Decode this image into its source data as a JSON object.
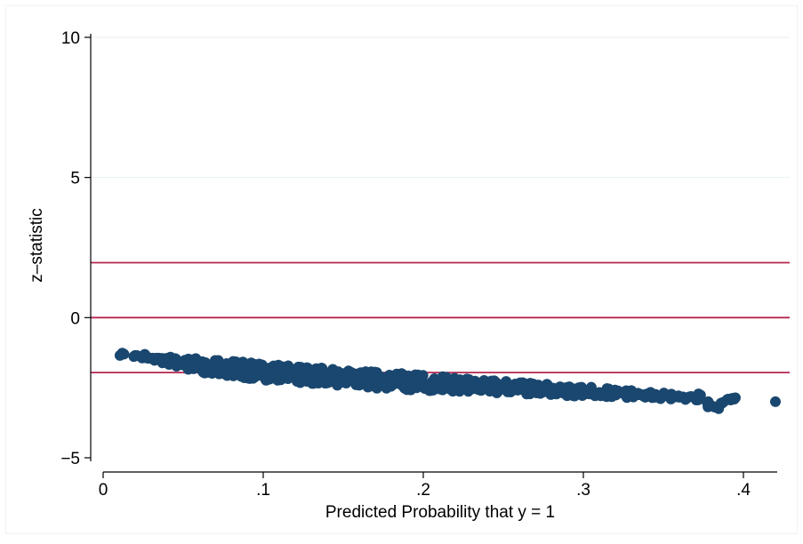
{
  "chart_data": {
    "type": "scatter",
    "title": "",
    "xlabel": "Predicted Probability that y = 1",
    "ylabel": "z–statistic",
    "xlim": [
      0,
      0.42
    ],
    "ylim": [
      -5,
      10
    ],
    "x_ticks": [
      {
        "value": 0,
        "label": "0"
      },
      {
        "value": 0.1,
        "label": ".1"
      },
      {
        "value": 0.2,
        "label": ".2"
      },
      {
        "value": 0.3,
        "label": ".3"
      },
      {
        "value": 0.4,
        "label": ".4"
      }
    ],
    "y_ticks": [
      {
        "value": -5,
        "label": "−5"
      },
      {
        "value": 0,
        "label": "0"
      },
      {
        "value": 5,
        "label": "5"
      },
      {
        "value": 10,
        "label": "10"
      }
    ],
    "grid": "horizontal",
    "reference_lines": [
      {
        "axis": "y",
        "value": -1.96
      },
      {
        "axis": "y",
        "value": 0
      },
      {
        "axis": "y",
        "value": 1.96
      }
    ],
    "series": [
      {
        "x": [
          0.013,
          0.02,
          0.025,
          0.03,
          0.035,
          0.04,
          0.045,
          0.05,
          0.055,
          0.06,
          0.065,
          0.07,
          0.075,
          0.08,
          0.085,
          0.09,
          0.095,
          0.1,
          0.105,
          0.11,
          0.115,
          0.12,
          0.125,
          0.13,
          0.135,
          0.14,
          0.145,
          0.15,
          0.155,
          0.16,
          0.165,
          0.17,
          0.175,
          0.18,
          0.185,
          0.19,
          0.195,
          0.2,
          0.205,
          0.21,
          0.215,
          0.22,
          0.225,
          0.23,
          0.235,
          0.24,
          0.245,
          0.25,
          0.255,
          0.26,
          0.265,
          0.27,
          0.275,
          0.28,
          0.285,
          0.29,
          0.295,
          0.3,
          0.305,
          0.31,
          0.315,
          0.32,
          0.325,
          0.33,
          0.335,
          0.34,
          0.345,
          0.35,
          0.355,
          0.36,
          0.365,
          0.37,
          0.372,
          0.378,
          0.38,
          0.383,
          0.386,
          0.39,
          0.393,
          0.42
        ],
        "y": [
          -1.3,
          -1.35,
          -1.4,
          -1.45,
          -1.5,
          -1.55,
          -1.58,
          -1.62,
          -1.66,
          -1.7,
          -1.74,
          -1.77,
          -1.8,
          -1.83,
          -1.86,
          -1.89,
          -1.91,
          -1.94,
          -1.96,
          -1.98,
          -2.01,
          -2.03,
          -2.05,
          -2.07,
          -2.09,
          -2.11,
          -2.13,
          -2.15,
          -2.17,
          -2.19,
          -2.21,
          -2.23,
          -2.25,
          -2.26,
          -2.28,
          -2.3,
          -2.31,
          -2.33,
          -2.35,
          -2.36,
          -2.38,
          -2.39,
          -2.41,
          -2.43,
          -2.44,
          -2.46,
          -2.47,
          -2.49,
          -2.5,
          -2.52,
          -2.53,
          -2.55,
          -2.56,
          -2.58,
          -2.59,
          -2.61,
          -2.62,
          -2.64,
          -2.65,
          -2.67,
          -2.68,
          -2.7,
          -2.71,
          -2.73,
          -2.75,
          -2.76,
          -2.78,
          -2.8,
          -2.82,
          -2.84,
          -2.86,
          -2.88,
          -2.75,
          -3.0,
          -3.15,
          -3.2,
          -3.05,
          -2.92,
          -2.88,
          -3.0
        ],
        "spread": [
          0.06,
          0.08,
          0.1,
          0.12,
          0.14,
          0.16,
          0.18,
          0.2,
          0.22,
          0.24,
          0.25,
          0.26,
          0.27,
          0.28,
          0.29,
          0.3,
          0.3,
          0.3,
          0.3,
          0.3,
          0.3,
          0.3,
          0.3,
          0.3,
          0.3,
          0.3,
          0.3,
          0.3,
          0.3,
          0.3,
          0.3,
          0.3,
          0.3,
          0.29,
          0.29,
          0.28,
          0.28,
          0.27,
          0.27,
          0.26,
          0.26,
          0.25,
          0.25,
          0.24,
          0.24,
          0.23,
          0.23,
          0.22,
          0.22,
          0.21,
          0.21,
          0.2,
          0.2,
          0.19,
          0.19,
          0.18,
          0.18,
          0.17,
          0.17,
          0.16,
          0.16,
          0.15,
          0.15,
          0.14,
          0.14,
          0.13,
          0.12,
          0.11,
          0.1,
          0.09,
          0.08,
          0.07,
          0.05,
          0.06,
          0.05,
          0.05,
          0.05,
          0.05,
          0.04,
          0.0
        ]
      }
    ]
  },
  "colors": {
    "marker": "#1a476f",
    "reference_line": "#b5254d",
    "grid": "#eaf2f3",
    "axis": "#000000",
    "background": "#ffffff"
  }
}
